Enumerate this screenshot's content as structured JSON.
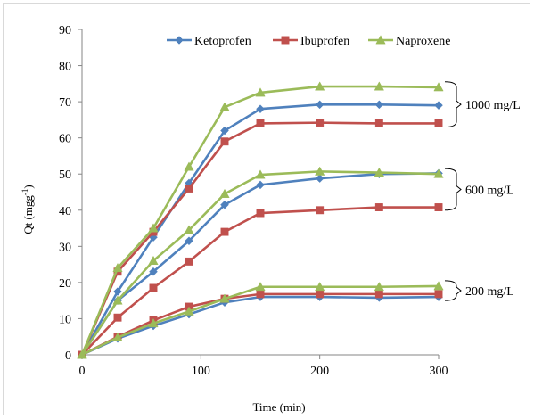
{
  "chart_data": {
    "type": "line",
    "xlabel": "Time  (min)",
    "ylabel": "Qt (mgg",
    "ylabel_sup": "-1",
    "ylabel_end": ")",
    "xlim": [
      0,
      300
    ],
    "ylim": [
      0,
      90
    ],
    "xticks": [
      0,
      100,
      200,
      300
    ],
    "yticks": [
      0,
      10,
      20,
      30,
      40,
      50,
      60,
      70,
      80,
      90
    ],
    "legend_position": "top-right",
    "series": [
      {
        "name": "Ketoprofen",
        "color": "#4f81bd",
        "marker": "diamond",
        "groups": [
          {
            "label": "1000 mg/L",
            "x": [
              0,
              30,
              60,
              90,
              120,
              150,
              200,
              250,
              300
            ],
            "y": [
              0,
              17.5,
              32.5,
              47.5,
              62,
              68,
              69.2,
              69.2,
              69
            ]
          },
          {
            "label": "600 mg/L",
            "x": [
              0,
              30,
              60,
              90,
              120,
              150,
              200,
              250,
              300
            ],
            "y": [
              0,
              15,
              23,
              31.5,
              41.5,
              47,
              48.8,
              50,
              50.2
            ]
          },
          {
            "label": "200 mg/L",
            "x": [
              0,
              30,
              60,
              90,
              120,
              150,
              200,
              250,
              300
            ],
            "y": [
              0,
              4.5,
              8,
              11.2,
              14.5,
              16,
              16,
              15.8,
              16
            ]
          }
        ]
      },
      {
        "name": "Ibuprofen",
        "color": "#c0504d",
        "marker": "square",
        "groups": [
          {
            "label": "1000 mg/L",
            "x": [
              0,
              30,
              60,
              90,
              120,
              150,
              200,
              250,
              300
            ],
            "y": [
              0,
              23,
              34,
              46,
              59,
              64,
              64.2,
              64,
              64
            ]
          },
          {
            "label": "600 mg/L",
            "x": [
              0,
              30,
              60,
              90,
              120,
              150,
              200,
              250,
              300
            ],
            "y": [
              0,
              10.3,
              18.5,
              25.8,
              34,
              39.2,
              40,
              40.8,
              40.8
            ]
          },
          {
            "label": "200 mg/L",
            "x": [
              0,
              30,
              60,
              90,
              120,
              150,
              200,
              250,
              300
            ],
            "y": [
              0,
              5,
              9.5,
              13.3,
              15.5,
              16.8,
              16.8,
              16.8,
              16.8
            ]
          }
        ]
      },
      {
        "name": "Naproxene",
        "color": "#9bbb59",
        "marker": "triangle",
        "groups": [
          {
            "label": "1000 mg/L",
            "x": [
              0,
              30,
              60,
              90,
              120,
              150,
              200,
              250,
              300
            ],
            "y": [
              0,
              24,
              35,
              52,
              68.5,
              72.5,
              74.2,
              74.2,
              74
            ]
          },
          {
            "label": "600 mg/L",
            "x": [
              0,
              30,
              60,
              90,
              120,
              150,
              200,
              250,
              300
            ],
            "y": [
              0,
              15,
              26,
              34.5,
              44.5,
              49.8,
              50.7,
              50.4,
              50
            ]
          },
          {
            "label": "200 mg/L",
            "x": [
              0,
              30,
              60,
              90,
              120,
              150,
              200,
              250,
              300
            ],
            "y": [
              0,
              4.8,
              8.7,
              12,
              15.5,
              18.8,
              18.8,
              18.8,
              19
            ]
          }
        ]
      }
    ],
    "annotations": [
      {
        "text": "1000 mg/L",
        "range": [
          63,
          75.5
        ]
      },
      {
        "text": "600 mg/L",
        "range": [
          40,
          51.5
        ]
      },
      {
        "text": "200 mg/L",
        "range": [
          15,
          20.5
        ]
      }
    ]
  }
}
